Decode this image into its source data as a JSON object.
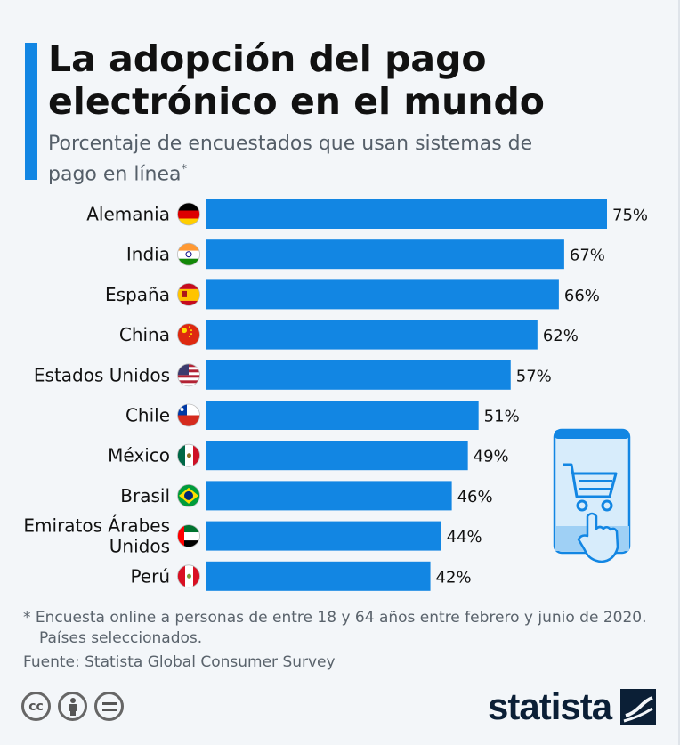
{
  "header": {
    "title": "La adopción del pago electrónico en el mundo",
    "subtitle": "Porcentaje de encuestados que usan sistemas de pago en línea",
    "subtitle_mark": "*"
  },
  "colors": {
    "accent": "#1286e3",
    "bar": "#1286e3",
    "text": "#111111",
    "muted": "#555f69"
  },
  "chart_data": {
    "type": "bar",
    "orientation": "horizontal",
    "categories": [
      "Alemania",
      "India",
      "España",
      "China",
      "Estados Unidos",
      "Chile",
      "México",
      "Brasil",
      "Emiratos Árabes Unidos",
      "Perú"
    ],
    "values": [
      75,
      67,
      66,
      62,
      57,
      51,
      49,
      46,
      44,
      42
    ],
    "value_labels": [
      "75%",
      "67%",
      "66%",
      "62%",
      "57%",
      "51%",
      "49%",
      "46%",
      "44%",
      "42%"
    ],
    "flags": [
      "flag-germany",
      "flag-india",
      "flag-spain",
      "flag-china",
      "flag-usa",
      "flag-chile",
      "flag-mexico",
      "flag-brazil",
      "flag-uae",
      "flag-peru"
    ],
    "xlim": [
      0,
      75
    ],
    "grid": false
  },
  "illustration": {
    "icon": "smartphone-shopping-cart-icon"
  },
  "footer": {
    "note_line1": "* Encuesta online a personas de entre 18 y 64 años entre febrero y junio de 2020.",
    "note_line2": "Países seleccionados.",
    "source": "Fuente: Statista Global Consumer Survey",
    "brand": "statista",
    "license_icons": [
      "cc-icon",
      "attribution-icon",
      "no-derivatives-icon"
    ],
    "cc_text": "cc"
  }
}
